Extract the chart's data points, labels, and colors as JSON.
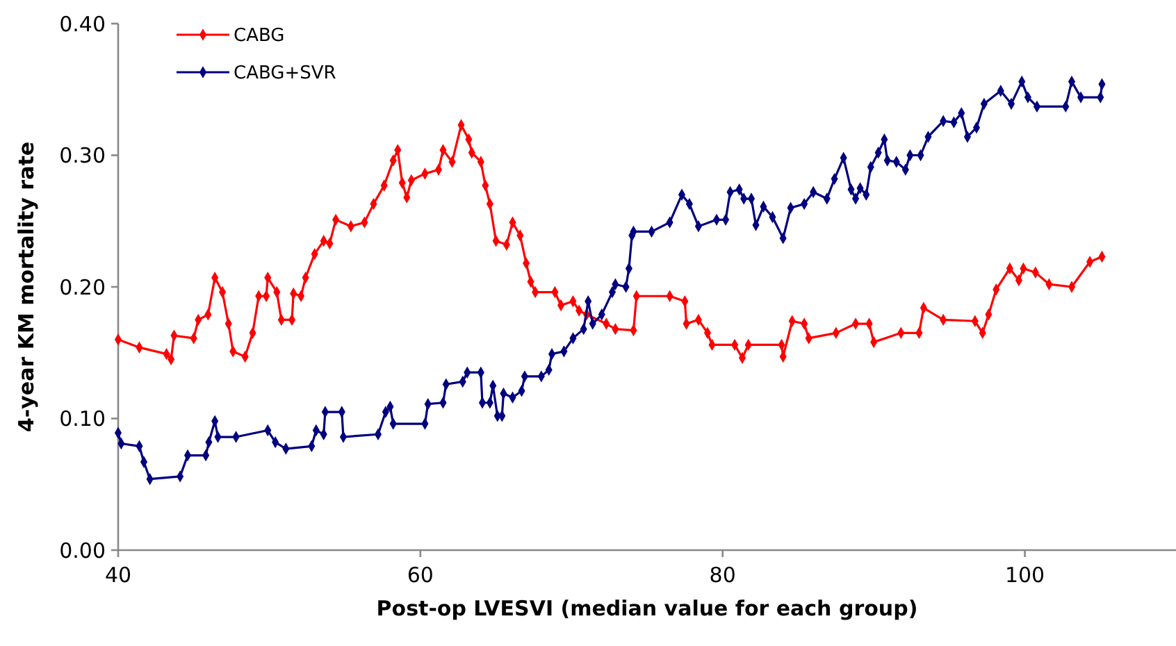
{
  "chart_data": {
    "type": "line",
    "xlabel": "Post-op LVESVI (median value for each group)",
    "ylabel": "4-year KM mortality rate",
    "xlim": [
      40,
      110
    ],
    "xticks": [
      40,
      60,
      80,
      100
    ],
    "ylim": [
      0,
      0.4
    ],
    "yticks": [
      {
        "value": 0,
        "label": "0.00"
      },
      {
        "value": 0.1,
        "label": "0.10"
      },
      {
        "value": 0.2,
        "label": "0.20"
      },
      {
        "value": 0.3,
        "label": "0.30"
      },
      {
        "value": 0.4,
        "label": "0.40"
      }
    ],
    "grid": false,
    "legend": "top left",
    "marker": "diamond",
    "line_style": "solid",
    "series": [
      {
        "name": "CABG",
        "color": "#ff0000",
        "x": [
          40,
          41.4,
          43.2,
          43.5,
          43.7,
          45,
          45.3,
          45.95,
          46.4,
          46.9,
          47.3,
          47.6,
          48.4,
          48.9,
          49.3,
          49.8,
          49.9,
          50.5,
          50.8,
          51.5,
          51.6,
          52.1,
          52.4,
          53,
          53.6,
          54,
          54.4,
          55.4,
          56.3,
          56.9,
          57.6,
          58.2,
          58.5,
          58.8,
          59.1,
          59.4,
          60.3,
          61.2,
          61.5,
          62.1,
          62.7,
          63.2,
          63.4,
          64,
          64.3,
          64.6,
          65,
          65.7,
          66.1,
          66.6,
          67,
          67.3,
          67.6,
          68.9,
          69.3,
          70.1,
          70.5,
          71,
          72.3,
          72.9,
          74.1,
          74.3,
          76.5,
          77.5,
          77.6,
          78.4,
          79,
          79.3,
          80.8,
          81.3,
          81.7,
          83.9,
          84,
          84.6,
          85.4,
          85.7,
          87.5,
          88.8,
          89.7,
          90,
          91.8,
          93,
          93.3,
          94.6,
          96.7,
          97.2,
          97.6,
          98.1,
          99,
          99.6,
          99.9,
          100.7,
          101.6,
          103.1,
          104.3,
          105.1
        ],
        "values": [
          0.16,
          0.154,
          0.149,
          0.145,
          0.163,
          0.161,
          0.175,
          0.179,
          0.207,
          0.196,
          0.172,
          0.151,
          0.147,
          0.165,
          0.193,
          0.193,
          0.207,
          0.196,
          0.175,
          0.175,
          0.195,
          0.193,
          0.207,
          0.225,
          0.235,
          0.233,
          0.251,
          0.246,
          0.249,
          0.263,
          0.277,
          0.296,
          0.304,
          0.279,
          0.268,
          0.281,
          0.286,
          0.289,
          0.304,
          0.295,
          0.323,
          0.312,
          0.302,
          0.295,
          0.277,
          0.263,
          0.235,
          0.232,
          0.249,
          0.239,
          0.218,
          0.204,
          0.196,
          0.196,
          0.186,
          0.189,
          0.182,
          0.179,
          0.172,
          0.168,
          0.167,
          0.193,
          0.193,
          0.189,
          0.172,
          0.175,
          0.165,
          0.156,
          0.156,
          0.146,
          0.156,
          0.156,
          0.147,
          0.174,
          0.172,
          0.161,
          0.165,
          0.172,
          0.172,
          0.158,
          0.165,
          0.165,
          0.184,
          0.175,
          0.174,
          0.165,
          0.179,
          0.198,
          0.214,
          0.205,
          0.214,
          0.211,
          0.202,
          0.2,
          0.219,
          0.223
        ]
      },
      {
        "name": "CABG+SVR",
        "color": "#000080",
        "x": [
          40,
          40.2,
          41.4,
          41.7,
          42.1,
          44.1,
          44.6,
          45.8,
          46,
          46.4,
          46.6,
          47.8,
          49.9,
          50.4,
          51.1,
          52.8,
          53.1,
          53.6,
          53.7,
          54.8,
          54.9,
          57.2,
          57.7,
          58,
          58.2,
          60.3,
          60.5,
          61.5,
          61.7,
          62.8,
          63.1,
          64,
          64.1,
          64.6,
          64.8,
          65.1,
          65.4,
          65.5,
          66.1,
          66.7,
          66.9,
          68,
          68.5,
          68.7,
          69.5,
          70.1,
          70.8,
          71.1,
          71.4,
          72,
          72.7,
          72.9,
          73.6,
          73.8,
          74,
          74.1,
          75.3,
          76.5,
          77.3,
          77.8,
          78.4,
          79.6,
          80.2,
          80.5,
          81.1,
          81.4,
          81.9,
          82.2,
          82.7,
          83.3,
          84,
          84.5,
          85.4,
          86,
          86.9,
          87.4,
          88,
          88.5,
          88.8,
          89.1,
          89.5,
          89.8,
          90.3,
          90.7,
          90.9,
          91.5,
          92.1,
          92.4,
          93.1,
          93.6,
          94.6,
          95.3,
          95.8,
          96.2,
          96.8,
          97.3,
          98.4,
          99.1,
          99.8,
          100.2,
          100.8,
          102.7,
          103.1,
          103.7,
          105,
          105.1
        ],
        "values": [
          0.089,
          0.081,
          0.079,
          0.067,
          0.054,
          0.056,
          0.072,
          0.072,
          0.082,
          0.098,
          0.086,
          0.086,
          0.091,
          0.082,
          0.077,
          0.079,
          0.091,
          0.088,
          0.105,
          0.105,
          0.086,
          0.088,
          0.105,
          0.109,
          0.096,
          0.096,
          0.111,
          0.112,
          0.126,
          0.128,
          0.135,
          0.135,
          0.112,
          0.112,
          0.125,
          0.102,
          0.102,
          0.119,
          0.116,
          0.121,
          0.132,
          0.132,
          0.137,
          0.149,
          0.151,
          0.161,
          0.168,
          0.189,
          0.172,
          0.179,
          0.196,
          0.202,
          0.2,
          0.214,
          0.239,
          0.242,
          0.242,
          0.249,
          0.27,
          0.263,
          0.246,
          0.251,
          0.251,
          0.272,
          0.274,
          0.267,
          0.267,
          0.247,
          0.261,
          0.253,
          0.237,
          0.26,
          0.263,
          0.272,
          0.267,
          0.282,
          0.298,
          0.274,
          0.267,
          0.275,
          0.27,
          0.291,
          0.302,
          0.312,
          0.296,
          0.295,
          0.289,
          0.3,
          0.3,
          0.314,
          0.326,
          0.325,
          0.332,
          0.314,
          0.321,
          0.339,
          0.349,
          0.339,
          0.356,
          0.344,
          0.337,
          0.337,
          0.356,
          0.344,
          0.344,
          0.354
        ]
      }
    ]
  }
}
